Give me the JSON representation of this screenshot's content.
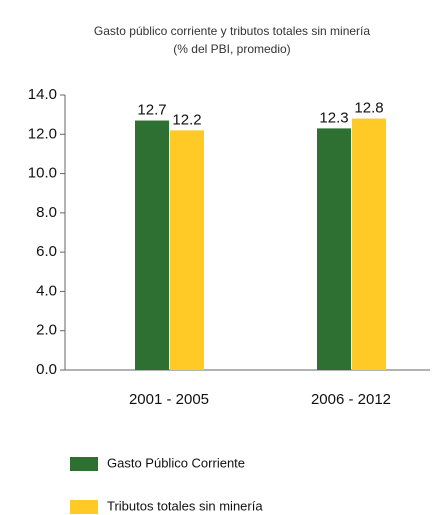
{
  "chart_data": {
    "type": "bar",
    "title": "Gasto público corriente y tributos totales sin minería",
    "subtitle": "(% del PBI, promedio)",
    "categories": [
      "2001 - 2005",
      "2006 - 2012"
    ],
    "series": [
      {
        "name": "Gasto Público Corriente",
        "color": "#2e7032",
        "values": [
          12.7,
          12.3
        ]
      },
      {
        "name": "Tributos totales sin minería",
        "color": "#ffc926",
        "values": [
          12.2,
          12.8
        ]
      }
    ],
    "ylim": [
      0,
      14
    ],
    "yticks": [
      {
        "value": 0,
        "label": "0.0"
      },
      {
        "value": 2,
        "label": "2.0"
      },
      {
        "value": 4,
        "label": "4.0"
      },
      {
        "value": 6,
        "label": "6.0"
      },
      {
        "value": 8,
        "label": "8.0"
      },
      {
        "value": 10,
        "label": "10.0"
      },
      {
        "value": 12,
        "label": "12.0"
      },
      {
        "value": 14,
        "label": "14.0"
      }
    ],
    "grid": false
  }
}
